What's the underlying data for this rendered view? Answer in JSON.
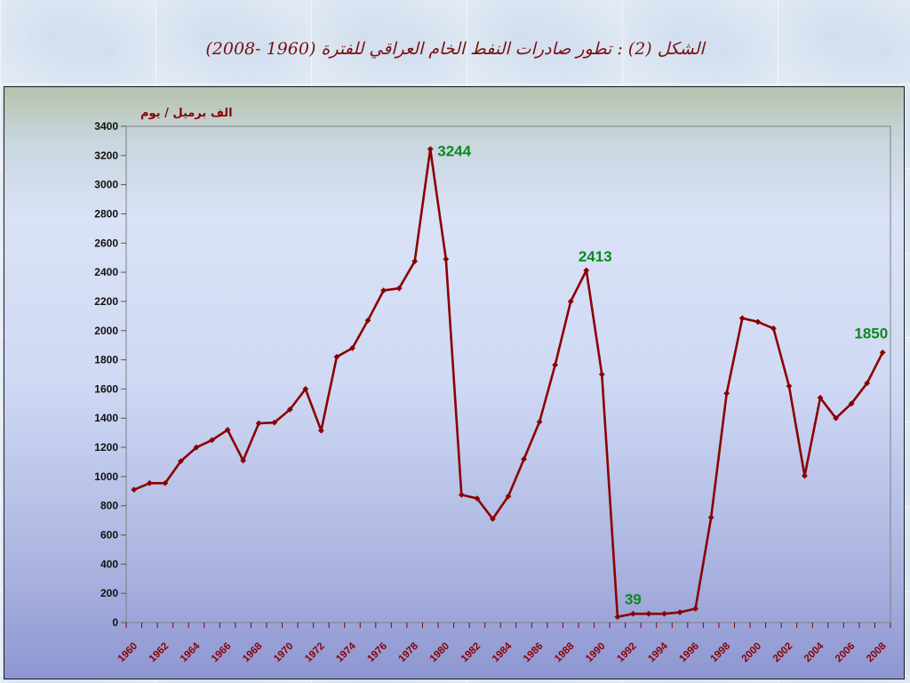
{
  "slide": {
    "title": "الشكل (2) : تطور صادرات النفط الخام العراقي للفترة (1960 -2008)"
  },
  "colors": {
    "line": "#8b0000",
    "annotation": "#0a8a1e",
    "axis_text": "#111111",
    "x_tick_text": "#8b0000"
  },
  "chart_data": {
    "type": "line",
    "title": "الشكل (2) : تطور صادرات النفط الخام العراقي للفترة (1960 -2008)",
    "ylabel": "الف برميل / يوم",
    "xlabel": "",
    "ylim": [
      0,
      3400
    ],
    "yticks": [
      0,
      200,
      400,
      600,
      800,
      1000,
      1200,
      1400,
      1600,
      1800,
      2000,
      2200,
      2400,
      2600,
      2800,
      3000,
      3200,
      3400
    ],
    "x": [
      1960,
      1961,
      1962,
      1963,
      1964,
      1965,
      1966,
      1967,
      1968,
      1969,
      1970,
      1971,
      1972,
      1973,
      1974,
      1975,
      1976,
      1977,
      1978,
      1979,
      1980,
      1981,
      1982,
      1983,
      1984,
      1985,
      1986,
      1987,
      1988,
      1989,
      1990,
      1991,
      1992,
      1993,
      1994,
      1995,
      1996,
      1997,
      1998,
      1999,
      2000,
      2001,
      2002,
      2003,
      2004,
      2005,
      2006,
      2007,
      2008
    ],
    "xtick_labels": [
      "1960",
      "1962",
      "1964",
      "1966",
      "1968",
      "1970",
      "1972",
      "1974",
      "1976",
      "1978",
      "1980",
      "1982",
      "1984",
      "1986",
      "1988",
      "1990",
      "1992",
      "1994",
      "1996",
      "1998",
      "2000",
      "2002",
      "2004",
      "2006",
      "2008"
    ],
    "series": [
      {
        "values": [
          910,
          955,
          955,
          1105,
          1200,
          1250,
          1320,
          1110,
          1365,
          1370,
          1460,
          1600,
          1315,
          1820,
          1880,
          2070,
          2275,
          2290,
          2475,
          3244,
          2490,
          875,
          850,
          710,
          865,
          1120,
          1375,
          1765,
          2200,
          2413,
          1700,
          39,
          60,
          60,
          60,
          70,
          95,
          720,
          1570,
          2085,
          2060,
          2015,
          1620,
          1005,
          1540,
          1400,
          1500,
          1640,
          1850
        ]
      }
    ],
    "annotations": [
      {
        "x": 1979,
        "value": "3244"
      },
      {
        "x": 1989,
        "value": "2413"
      },
      {
        "x": 1991,
        "value": "39"
      },
      {
        "x": 2008,
        "value": "1850"
      }
    ],
    "grid": false,
    "legend": "none"
  }
}
